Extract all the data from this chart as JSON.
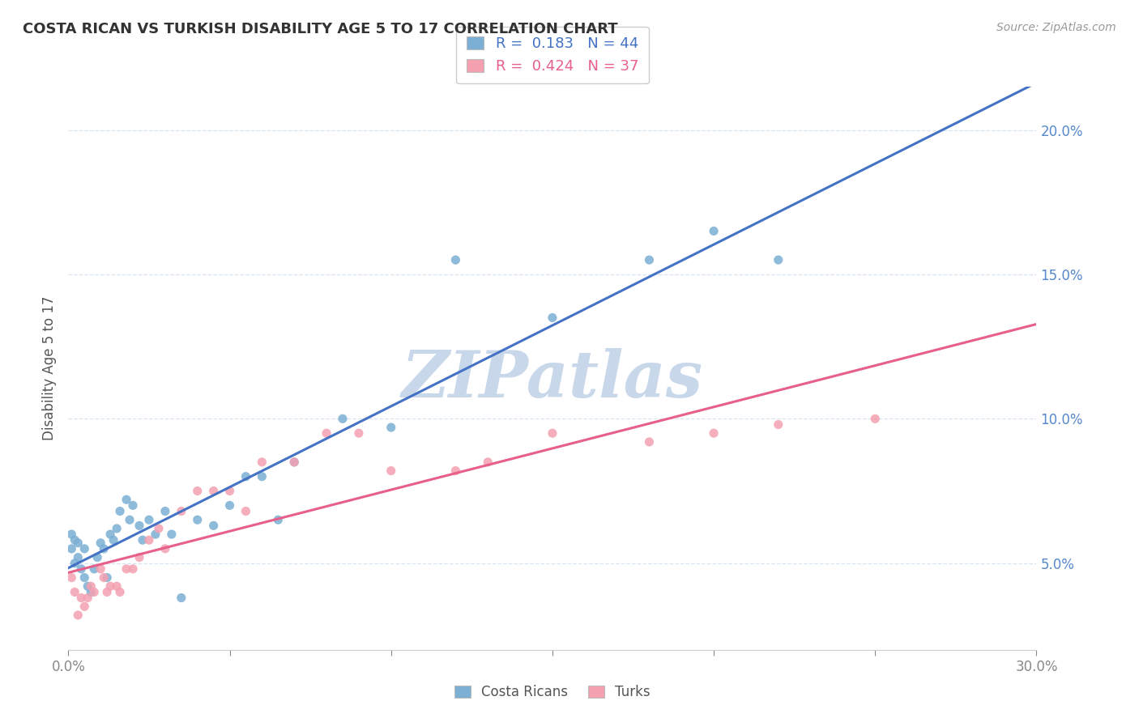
{
  "title": "COSTA RICAN VS TURKISH DISABILITY AGE 5 TO 17 CORRELATION CHART",
  "source_text": "Source: ZipAtlas.com",
  "xlim": [
    0.0,
    0.3
  ],
  "ylim": [
    0.02,
    0.215
  ],
  "xtick_vals": [
    0.0,
    0.05,
    0.1,
    0.15,
    0.2,
    0.25,
    0.3
  ],
  "ytick_vals": [
    0.05,
    0.1,
    0.15,
    0.2
  ],
  "ylabel_label": "Disability Age 5 to 17",
  "cr_color": "#7bafd4",
  "tr_color": "#f4a0b0",
  "cr_line_color": "#4472c4",
  "tr_line_color": "#e8608a",
  "dash_line_color": "#e8a0b8",
  "watermark_color": "#c8d8ea",
  "background_color": "#ffffff",
  "grid_color": "#d8e4f0",
  "cr_scatter_x": [
    0.001,
    0.001,
    0.002,
    0.002,
    0.003,
    0.003,
    0.004,
    0.005,
    0.005,
    0.006,
    0.007,
    0.008,
    0.009,
    0.01,
    0.011,
    0.012,
    0.013,
    0.014,
    0.015,
    0.016,
    0.018,
    0.019,
    0.02,
    0.022,
    0.023,
    0.025,
    0.027,
    0.03,
    0.032,
    0.035,
    0.04,
    0.045,
    0.05,
    0.055,
    0.06,
    0.065,
    0.07,
    0.085,
    0.1,
    0.12,
    0.15,
    0.18,
    0.2,
    0.22
  ],
  "cr_scatter_y": [
    0.055,
    0.06,
    0.05,
    0.058,
    0.052,
    0.057,
    0.048,
    0.055,
    0.045,
    0.042,
    0.04,
    0.048,
    0.052,
    0.057,
    0.055,
    0.045,
    0.06,
    0.058,
    0.062,
    0.068,
    0.072,
    0.065,
    0.07,
    0.063,
    0.058,
    0.065,
    0.06,
    0.068,
    0.06,
    0.038,
    0.065,
    0.063,
    0.07,
    0.08,
    0.08,
    0.065,
    0.085,
    0.1,
    0.097,
    0.155,
    0.135,
    0.155,
    0.165,
    0.155
  ],
  "tr_scatter_x": [
    0.001,
    0.002,
    0.003,
    0.004,
    0.005,
    0.006,
    0.007,
    0.008,
    0.01,
    0.011,
    0.012,
    0.013,
    0.015,
    0.016,
    0.018,
    0.02,
    0.022,
    0.025,
    0.028,
    0.03,
    0.035,
    0.04,
    0.045,
    0.05,
    0.055,
    0.06,
    0.07,
    0.08,
    0.09,
    0.1,
    0.12,
    0.13,
    0.15,
    0.18,
    0.2,
    0.22,
    0.25
  ],
  "tr_scatter_y": [
    0.045,
    0.04,
    0.032,
    0.038,
    0.035,
    0.038,
    0.042,
    0.04,
    0.048,
    0.045,
    0.04,
    0.042,
    0.042,
    0.04,
    0.048,
    0.048,
    0.052,
    0.058,
    0.062,
    0.055,
    0.068,
    0.075,
    0.075,
    0.075,
    0.068,
    0.085,
    0.085,
    0.095,
    0.095,
    0.082,
    0.082,
    0.085,
    0.095,
    0.092,
    0.095,
    0.098,
    0.1
  ],
  "legend_cr_label": "R =  0.183   N = 44",
  "legend_tr_label": "R =  0.424   N = 37",
  "legend_cr_label2": "Costa Ricans",
  "legend_tr_label2": "Turks"
}
